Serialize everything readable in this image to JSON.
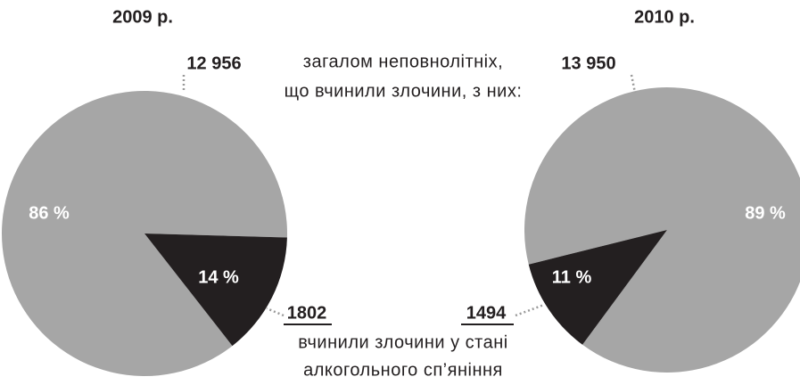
{
  "chart_data": [
    {
      "type": "pie",
      "title": "2009 р.",
      "values": [
        86,
        14
      ],
      "value_labels": [
        "86 %",
        "14 %"
      ],
      "colors": [
        "#a6a6a6",
        "#231f20"
      ],
      "total_label": "12 956",
      "subset_label": "1802"
    },
    {
      "type": "pie",
      "title": "2010 р.",
      "values": [
        89,
        11
      ],
      "value_labels": [
        "89 %",
        "11 %"
      ],
      "colors": [
        "#a6a6a6",
        "#231f20"
      ],
      "total_label": "13 950",
      "subset_label": "1494"
    }
  ],
  "captions": {
    "total": [
      "загалом неповнолітніх,",
      "що вчинили злочини, з них:"
    ],
    "subset": [
      "вчинили злочини у стані",
      "алкогольного сп’яніння"
    ]
  }
}
